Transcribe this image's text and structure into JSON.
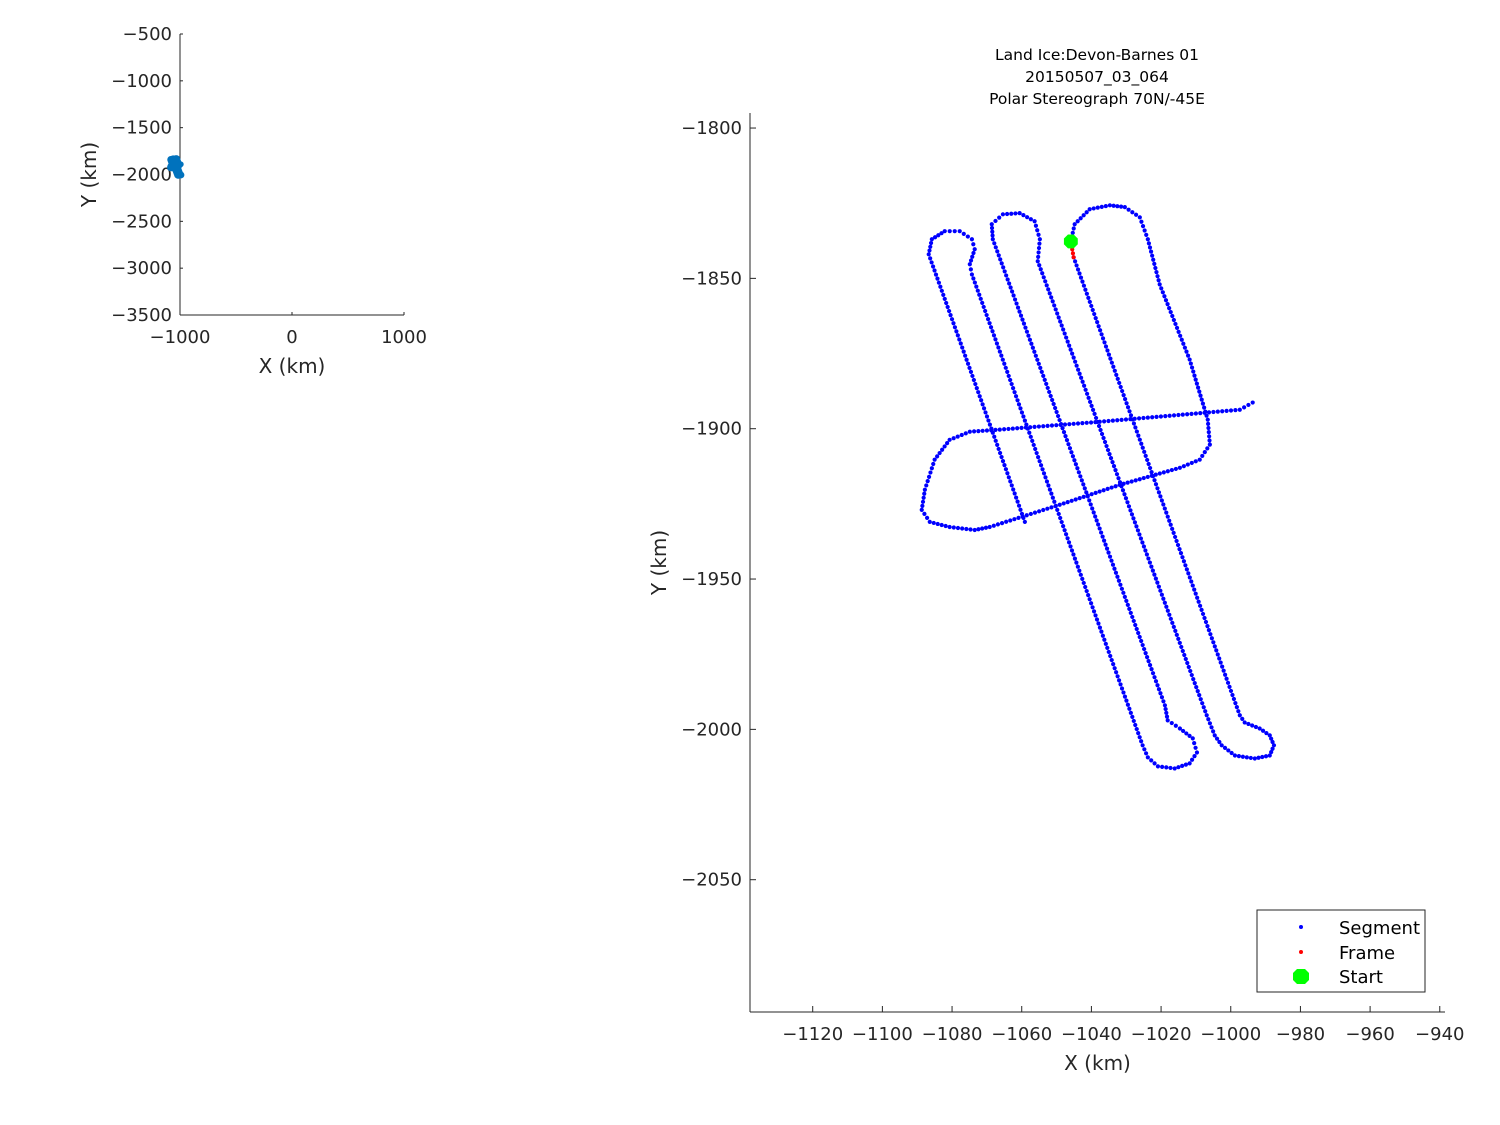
{
  "chart_data": [
    {
      "type": "scatter",
      "title": "",
      "xlabel": "X (km)",
      "ylabel": "Y (km)",
      "xlim": [
        -1000,
        1000
      ],
      "ylim": [
        -3500,
        -500
      ],
      "xticks": [
        "-1000",
        "0",
        "1000"
      ],
      "yticks": [
        "-500",
        "-1000",
        "-1500",
        "-2000",
        "-2500",
        "-3000",
        "-3500"
      ],
      "grid": false,
      "color": "#0072BD",
      "note_series": "overview of flight track extent"
    },
    {
      "type": "scatter",
      "title": [
        "Land Ice:Devon-Barnes 01",
        "20150507_03_064",
        "Polar Stereograph 70N/-45E"
      ],
      "xlabel": "X (km)",
      "ylabel": "Y (km)",
      "xlim": [
        -1138,
        -938.5
      ],
      "ylim": [
        -2094,
        -1795
      ],
      "xticks": [
        "-1120",
        "-1100",
        "-1080",
        "-1060",
        "-1040",
        "-1020",
        "-1000",
        "-980",
        "-960",
        "-940"
      ],
      "yticks": [
        "-1800",
        "-1850",
        "-1900",
        "-1950",
        "-2000",
        "-2050"
      ],
      "grid": false,
      "legend_position": "bottom-right",
      "series": [
        {
          "name": "Segment",
          "color": "#0000FF",
          "marker": "dot",
          "paths": [
            [
              [
                -1045.1,
                -1843.0
              ],
              [
                -997.4,
                -1995.3
              ],
              [
                -996.0,
                -1997.7
              ],
              [
                -991.7,
                -1999.7
              ],
              [
                -988.8,
                -2002.0
              ],
              [
                -987.6,
                -2005.3
              ],
              [
                -988.8,
                -2008.7
              ],
              [
                -993.1,
                -2009.7
              ],
              [
                -998.8,
                -2008.7
              ],
              [
                -1002.6,
                -2005.3
              ],
              [
                -1004.6,
                -2002.0
              ],
              [
                -1006.9,
                -1995.3
              ],
              [
                -1055.4,
                -1844.3
              ],
              [
                -1054.8,
                -1837.0
              ],
              [
                -1056.3,
                -1831.0
              ],
              [
                -1060.6,
                -1828.3
              ],
              [
                -1065.4,
                -1828.7
              ],
              [
                -1068.6,
                -1832.0
              ],
              [
                -1068.3,
                -1837.0
              ],
              [
                -1018.9,
                -1992.0
              ],
              [
                -1018.1,
                -1997.0
              ],
              [
                -1014.6,
                -1999.7
              ],
              [
                -1010.9,
                -2003.0
              ],
              [
                -1009.7,
                -2007.7
              ],
              [
                -1011.8,
                -2011.3
              ],
              [
                -1016.1,
                -2013.0
              ],
              [
                -1020.9,
                -2012.3
              ],
              [
                -1023.8,
                -2009.3
              ],
              [
                -1025.3,
                -2005.3
              ],
              [
                -1074.3,
                -1848.7
              ],
              [
                -1074.9,
                -1845.3
              ],
              [
                -1073.5,
                -1840.3
              ],
              [
                -1074.3,
                -1837.0
              ],
              [
                -1077.8,
                -1834.3
              ],
              [
                -1082.1,
                -1834.3
              ],
              [
                -1085.8,
                -1837.0
              ],
              [
                -1086.7,
                -1842.0
              ],
              [
                -1059.1,
                -1931.0
              ]
            ],
            [
              [
                -993.7,
                -1891.3
              ],
              [
                -997.4,
                -1893.7
              ],
              [
                -1007.5,
                -1894.7
              ],
              [
                -1037.6,
                -1897.7
              ],
              [
                -1066.3,
                -1900.3
              ],
              [
                -1074.9,
                -1901.0
              ],
              [
                -1080.7,
                -1903.7
              ],
              [
                -1085.0,
                -1910.3
              ],
              [
                -1087.8,
                -1920.3
              ],
              [
                -1088.7,
                -1927.0
              ],
              [
                -1086.4,
                -1931.0
              ],
              [
                -1080.7,
                -1932.7
              ],
              [
                -1073.5,
                -1933.7
              ],
              [
                -1069.2,
                -1932.7
              ],
              [
                -1049.1,
                -1925.3
              ],
              [
                -1031.9,
                -1918.7
              ],
              [
                -1014.6,
                -1913.0
              ],
              [
                -1008.9,
                -1910.3
              ],
              [
                -1006.0,
                -1905.3
              ],
              [
                -1006.6,
                -1897.0
              ],
              [
                -1011.8,
                -1877.0
              ],
              [
                -1020.4,
                -1852.0
              ],
              [
                -1023.8,
                -1837.0
              ],
              [
                -1026.1,
                -1829.7
              ],
              [
                -1030.4,
                -1826.3
              ],
              [
                -1034.7,
                -1825.7
              ],
              [
                -1040.5,
                -1827.0
              ],
              [
                -1044.8,
                -1832.0
              ],
              [
                -1045.9,
                -1837.7
              ]
            ]
          ]
        },
        {
          "name": "Frame",
          "color": "#FF0000",
          "marker": "dot",
          "paths": [
            [
              [
                -1045.9,
                -1837.7
              ],
              [
                -1045.1,
                -1843.0
              ]
            ]
          ]
        },
        {
          "name": "Start",
          "color": "#00FF00",
          "marker": "octagon",
          "points": [
            [
              -1045.9,
              -1837.7
            ]
          ]
        }
      ]
    }
  ]
}
